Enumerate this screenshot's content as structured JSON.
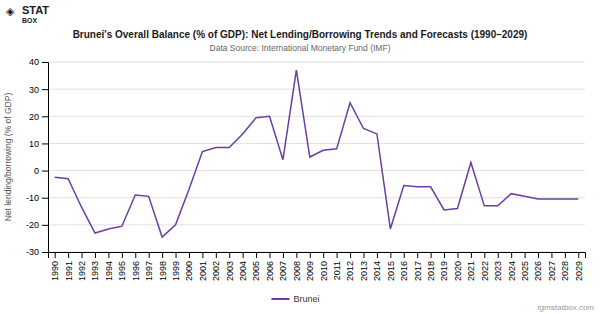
{
  "chart_data": {
    "type": "line",
    "title": "Brunei's Overall Balance (% of GDP): Net Lending/Borrowing Trends and Forecasts (1990–2029)",
    "subtitle": "Data Source: International Monetary Fund (IMF)",
    "y_label": "Net lending/borrowing (% of GDP)",
    "annotations": [
      "tgmstatbox.com",
      "◈",
      "STAT",
      "BOX"
    ],
    "x": [
      1990,
      1991,
      1992,
      1993,
      1994,
      1995,
      1996,
      1997,
      1998,
      1999,
      2000,
      2001,
      2002,
      2003,
      2004,
      2005,
      2006,
      2007,
      2008,
      2009,
      2010,
      2011,
      2012,
      2013,
      2014,
      2015,
      2016,
      2017,
      2018,
      2019,
      2020,
      2021,
      2022,
      2023,
      2024,
      2025,
      2026,
      2027,
      2028,
      2029
    ],
    "series": [
      {
        "name": "Brunei",
        "color": "#6B3FA0",
        "values": [
          -2.5,
          -3.0,
          -13.5,
          -23.0,
          -21.5,
          -20.5,
          -9.0,
          -9.5,
          -24.5,
          -20.0,
          -7.0,
          7.0,
          8.5,
          8.5,
          13.5,
          19.5,
          20.0,
          4.0,
          37.0,
          5.0,
          7.5,
          8.0,
          25.0,
          15.5,
          13.5,
          -21.5,
          -5.5,
          -6.0,
          -6.0,
          -14.5,
          -14.0,
          3.0,
          -13.0,
          -13.0,
          -8.5,
          -9.5,
          -10.5,
          -10.5,
          -10.5,
          -10.5
        ]
      }
    ],
    "xlim": [
      1989.5,
      2029.5
    ],
    "xticks": [
      1990,
      1991,
      1992,
      1993,
      1994,
      1995,
      1996,
      1997,
      1998,
      1999,
      2000,
      2001,
      2002,
      2003,
      2004,
      2005,
      2006,
      2007,
      2008,
      2009,
      2010,
      2011,
      2012,
      2013,
      2014,
      2015,
      2016,
      2017,
      2018,
      2019,
      2020,
      2021,
      2022,
      2023,
      2024,
      2025,
      2026,
      2027,
      2028,
      2029
    ],
    "ylim": [
      -30,
      40
    ],
    "yticks": [
      -30,
      -20,
      -10,
      0,
      10,
      20,
      30,
      40
    ],
    "grid": true,
    "legend": "bottom"
  }
}
